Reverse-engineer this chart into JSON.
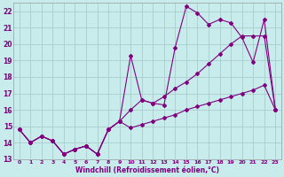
{
  "xlabel": "Windchill (Refroidissement éolien,°C)",
  "bg_color": "#c8ecec",
  "grid_color": "#aacccc",
  "line_color": "#800080",
  "xlim": [
    -0.5,
    23.5
  ],
  "ylim": [
    13,
    22.5
  ],
  "yticks": [
    13,
    14,
    15,
    16,
    17,
    18,
    19,
    20,
    21,
    22
  ],
  "xticks": [
    0,
    1,
    2,
    3,
    4,
    5,
    6,
    7,
    8,
    9,
    10,
    11,
    12,
    13,
    14,
    15,
    16,
    17,
    18,
    19,
    20,
    21,
    22,
    23
  ],
  "s1": [
    14.8,
    14.0,
    14.4,
    14.1,
    13.3,
    13.6,
    13.8,
    13.3,
    14.8,
    15.3,
    14.9,
    15.1,
    15.3,
    15.5,
    15.7,
    16.0,
    16.2,
    16.4,
    16.6,
    16.8,
    17.0,
    17.2,
    17.5,
    16.0
  ],
  "s2": [
    14.8,
    14.0,
    14.4,
    14.1,
    13.3,
    13.6,
    13.8,
    13.3,
    14.8,
    15.3,
    19.3,
    16.6,
    16.4,
    16.3,
    19.8,
    22.3,
    21.9,
    21.2,
    21.5,
    21.3,
    20.4,
    18.9,
    21.5,
    16.0
  ],
  "s3": [
    14.8,
    14.0,
    14.4,
    14.1,
    13.3,
    13.6,
    13.8,
    13.3,
    14.8,
    15.3,
    16.0,
    16.6,
    16.4,
    16.8,
    17.3,
    17.7,
    18.2,
    18.8,
    19.4,
    20.0,
    20.5,
    20.5,
    20.5,
    16.0
  ]
}
